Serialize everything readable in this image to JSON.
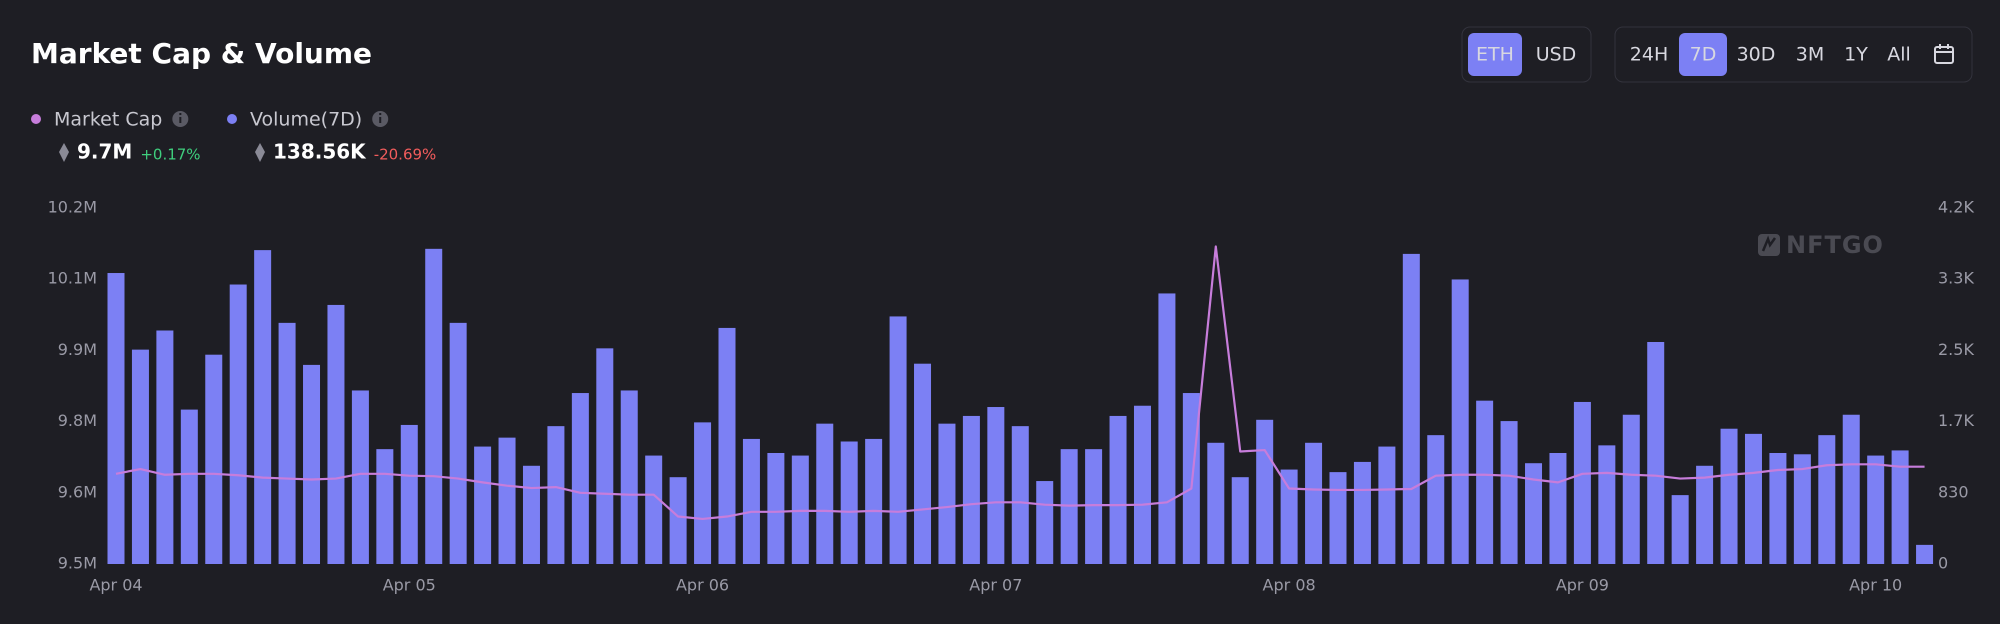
{
  "chart_data": {
    "type": "combo",
    "title": "Market Cap & Volume",
    "currency": {
      "options": [
        "ETH",
        "USD"
      ],
      "selected": "ETH"
    },
    "range": {
      "options": [
        "24H",
        "7D",
        "30D",
        "3M",
        "1Y",
        "All"
      ],
      "selected": "7D"
    },
    "watermark": "NFTGO",
    "categories": [
      "Apr 04",
      null,
      null,
      null,
      null,
      null,
      null,
      null,
      null,
      null,
      null,
      null,
      "Apr 05",
      null,
      null,
      null,
      null,
      null,
      null,
      null,
      null,
      null,
      null,
      null,
      "Apr 06",
      null,
      null,
      null,
      null,
      null,
      null,
      null,
      null,
      null,
      null,
      null,
      "Apr 07",
      null,
      null,
      null,
      null,
      null,
      null,
      null,
      null,
      null,
      null,
      null,
      "Apr 08",
      null,
      null,
      null,
      null,
      null,
      null,
      null,
      null,
      null,
      null,
      null,
      "Apr 09",
      null,
      null,
      null,
      null,
      null,
      null,
      null,
      null,
      null,
      null,
      null,
      "Apr 10",
      null,
      null
    ],
    "series": [
      {
        "name": "Market Cap",
        "type": "line",
        "axis": "y",
        "color": "#c77ddb",
        "current": "9.7M",
        "change": "+0.17%",
        "values": [
          9640000,
          9650000,
          9638000,
          9640000,
          9640000,
          9637000,
          9632000,
          9630000,
          9628000,
          9630000,
          9640000,
          9640000,
          9636000,
          9635000,
          9630000,
          9622000,
          9615000,
          9610000,
          9612000,
          9600000,
          9598000,
          9596000,
          9596000,
          9550000,
          9545000,
          9550000,
          9560000,
          9560000,
          9562000,
          9562000,
          9560000,
          9562000,
          9560000,
          9565000,
          9570000,
          9576000,
          9580000,
          9580000,
          9575000,
          9573000,
          9574000,
          9574000,
          9575000,
          9580000,
          9609000,
          10119000,
          9687000,
          9690000,
          9609000,
          9607000,
          9606000,
          9606000,
          9607000,
          9608000,
          9636000,
          9638000,
          9638000,
          9636000,
          9628000,
          9622000,
          9640000,
          9642000,
          9638000,
          9636000,
          9630000,
          9632000,
          9638000,
          9642000,
          9648000,
          9650000,
          9658000,
          9660000,
          9660000,
          9655000,
          9655000
        ]
      },
      {
        "name": "Volume(7D)",
        "type": "bar",
        "axis": "y2",
        "color": "#7c80f4",
        "current": "138.56K",
        "change": "-20.69%",
        "values": [
          3392,
          2499,
          2722,
          1800,
          2440,
          3258,
          3659,
          2811,
          2321,
          3020,
          2023,
          1339,
          1621,
          3674,
          2811,
          1369,
          1473,
          1145,
          1607,
          1993,
          2514,
          2023,
          1264,
          1012,
          1651,
          2752,
          1458,
          1294,
          1264,
          1636,
          1428,
          1458,
          2886,
          2335,
          1636,
          1726,
          1830,
          1607,
          967,
          1339,
          1339,
          1726,
          1845,
          3154,
          1993,
          1413,
          1012,
          1681,
          1101,
          1413,
          1071,
          1190,
          1369,
          3615,
          1502,
          3317,
          1904,
          1666,
          1175,
          1294,
          1889,
          1383,
          1740,
          2588,
          803,
          1145,
          1577,
          1517,
          1294,
          1279,
          1502,
          1740,
          1264,
          1324,
          223
        ]
      }
    ],
    "ylim": [
      9450000,
      10200000
    ],
    "yticks": [
      {
        "value": 9450000,
        "label": "9.5M"
      },
      {
        "value": 9600000,
        "label": "9.6M"
      },
      {
        "value": 9750000,
        "label": "9.8M"
      },
      {
        "value": 9900000,
        "label": "9.9M"
      },
      {
        "value": 10050000,
        "label": "10.1M"
      },
      {
        "value": 10200000,
        "label": "10.2M"
      }
    ],
    "y2lim": [
      0,
      4150
    ],
    "y2ticks": [
      0,
      830,
      {
        "value": 1660,
        "label": "1.7K"
      },
      {
        "value": 2490,
        "label": "2.5K"
      },
      {
        "value": 3320,
        "label": "3.3K"
      },
      {
        "value": 4150,
        "label": "4.2K"
      }
    ]
  }
}
